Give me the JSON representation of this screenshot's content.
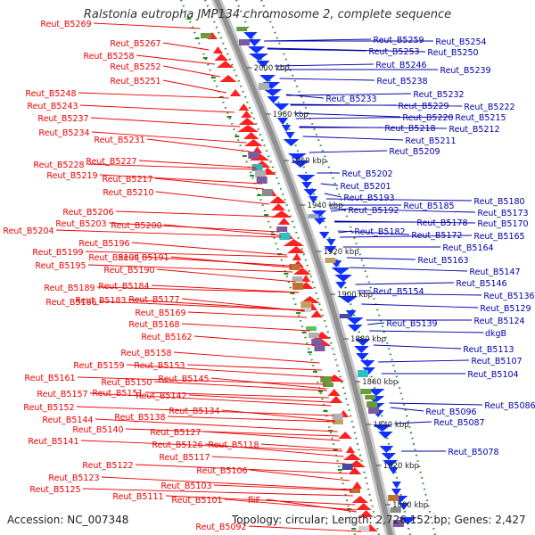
{
  "title": "Ralstonia eutropha JMP134 chromosome 2, complete sequence",
  "accession": "Accession: NC_007348",
  "summary": "Topology: circular; Length: 2,726,152 bp; Genes: 2,427",
  "colors": {
    "reverse_strand_label": "#ee0000",
    "forward_strand_label": "#0000aa",
    "reverse_strand_gene": "#ff2020",
    "forward_strand_gene": "#1030ff",
    "backbone": "#909090",
    "ring_dots": "#2e8b2e"
  },
  "scale_ticks": [
    "2000 kbp",
    "1980 kbp",
    "1960 kbp",
    "1940 kbp",
    "1920 kbp",
    "1900 kbp",
    "1880 kbp",
    "1860 kbp",
    "1840 kbp",
    "1820 kbp",
    "1800 kbp"
  ],
  "left_labels": [
    "Reut_B5269",
    "Reut_B5267",
    "Reut_B5258",
    "Reut_B5252",
    "Reut_B5251",
    "Reut_B5248",
    "Reut_B5243",
    "Reut_B5237",
    "Reut_B5234",
    "Reut_B5231",
    "Reut_B5228",
    "Reut_B5227",
    "Reut_B5219",
    "Reut_B5217",
    "Reut_B5210",
    "Reut_B5206",
    "Reut_B5204",
    "Reut_B5203",
    "Reut_B5200",
    "Reut_B5196",
    "Reut_B5199",
    "Reut_B5195",
    "Reut_B5194",
    "Reut_B5191",
    "Reut_B5190",
    "Reut_B5189",
    "Reut_B5184",
    "Reut_B5186",
    "Reut_B5183",
    "Reut_B5177",
    "Reut_B5169",
    "Reut_B5168",
    "Reut_B5162",
    "Reut_B5158",
    "Reut_B5159",
    "Reut_B5153",
    "Reut_B5161",
    "Reut_B5150",
    "Reut_B5145",
    "Reut_B5157",
    "Reut_B5151",
    "Reut_B5142",
    "Reut_B5152",
    "Reut_B5134",
    "Reut_B5144",
    "Reut_B5138",
    "Reut_B5140",
    "Reut_B5127",
    "Reut_B5141",
    "Reut_B5126",
    "Reut_B5118",
    "Reut_B5117",
    "Reut_B5122",
    "Reut_B5106",
    "Reut_B5123",
    "Reut_B5103",
    "Reut_B5125",
    "Reut_B5111",
    "Reut_B5101",
    "fliF",
    "Reut_B5092"
  ],
  "right_labels": [
    "Reut_B5259",
    "Reut_B5254",
    "Reut_B5253",
    "Reut_B5250",
    "Reut_B5246",
    "Reut_B5239",
    "Reut_B5238",
    "Reut_B5233",
    "Reut_B5232",
    "Reut_B5229",
    "Reut_B5222",
    "Reut_B5220",
    "Reut_B5215",
    "Reut_B5218",
    "Reut_B5212",
    "Reut_B5211",
    "Reut_B5209",
    "Reut_B5202",
    "Reut_B5201",
    "Reut_B5193",
    "Reut_B5192",
    "Reut_B5185",
    "Reut_B5180",
    "Reut_B5173",
    "Reut_B5182",
    "Reut_B5178",
    "Reut_B5170",
    "Reut_B5172",
    "Reut_B5165",
    "Reut_B5164",
    "Reut_B5163",
    "Reut_B5147",
    "Reut_B5146",
    "Reut_B5154",
    "Reut_B5136",
    "Reut_B5129",
    "Reut_B5139",
    "Reut_B5124",
    "dkgB",
    "Reut_B5113",
    "Reut_B5107",
    "Reut_B5104",
    "Reut_B5086",
    "Reut_B5096",
    "Reut_B5087",
    "Reut_B5078"
  ]
}
